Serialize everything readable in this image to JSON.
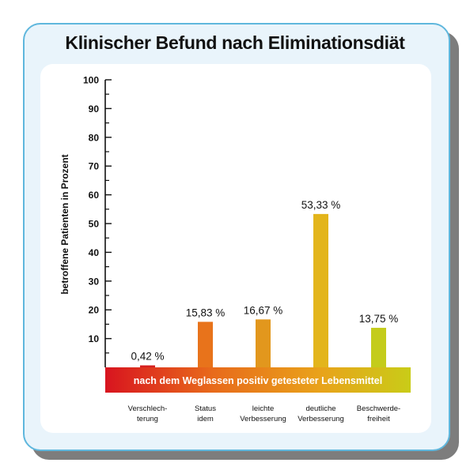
{
  "chart_data": {
    "type": "bar",
    "title": "Klinischer Befund nach Eliminationsdiät",
    "ylabel": "betroffene Patienten in Prozent",
    "xlabel": "nach dem Weglassen positiv getesteter Lebensmittel",
    "ylim": [
      0,
      100
    ],
    "yticks": [
      "10",
      "20",
      "30",
      "40",
      "50",
      "60",
      "70",
      "80",
      "90",
      "100"
    ],
    "categories": [
      [
        "Verschlech-",
        "terung"
      ],
      [
        "Status",
        "idem"
      ],
      [
        "leichte",
        "Verbesserung"
      ],
      [
        "deutliche",
        "Verbesserung"
      ],
      [
        "Beschwerde-",
        "freiheit"
      ]
    ],
    "values": [
      0.42,
      15.83,
      16.67,
      53.33,
      13.75
    ],
    "value_labels": [
      "0,42 %",
      "15,83 %",
      "16,67 %",
      "53,33 %",
      "13,75 %"
    ],
    "colors": [
      "#d6201f",
      "#e8731b",
      "#e2971d",
      "#e3b51b",
      "#c4cc1b"
    ],
    "grid": false,
    "legend": "none"
  },
  "colors": {
    "card_background": "#e9f4fb",
    "card_border": "#5fb7dd",
    "band_gradient": [
      "#d8141f",
      "#e86a1b",
      "#e9a21a",
      "#c9cc18"
    ]
  }
}
